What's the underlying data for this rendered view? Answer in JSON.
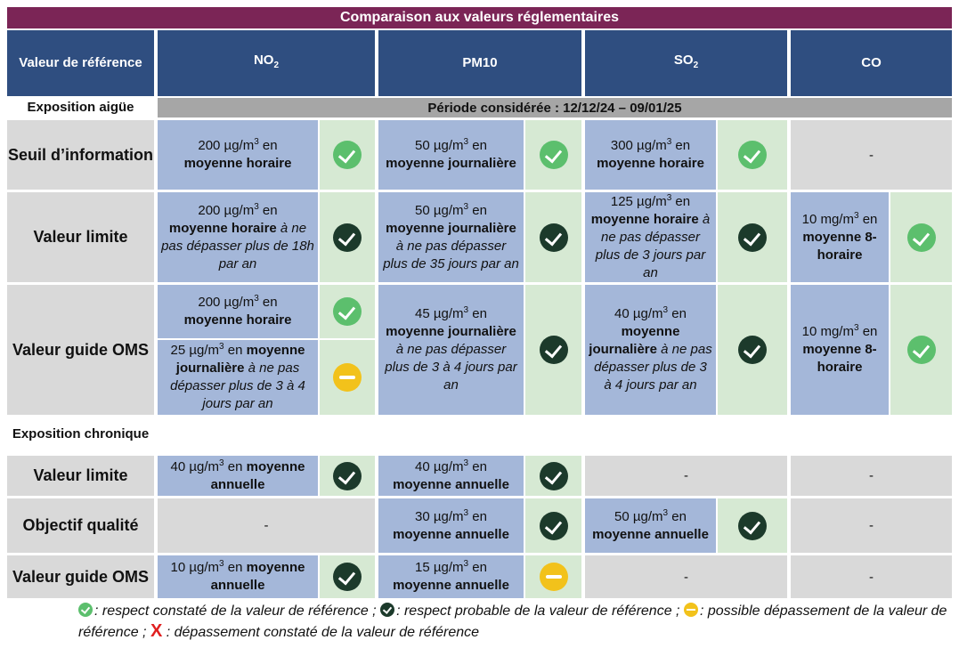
{
  "title": "Comparaison aux valeurs réglementaires",
  "headers": {
    "ref": "Valeur de référence",
    "no2": "NO",
    "no2_sub": "2",
    "pm10": "PM10",
    "so2": "SO",
    "so2_sub": "2",
    "co": "CO"
  },
  "sections": {
    "acute": "Exposition aigüe",
    "period": "Période considérée : 12/12/24 – 09/01/25",
    "chronic": "Exposition chronique"
  },
  "rows": {
    "seuil_info": "Seuil d’information",
    "valeur_limite": "Valeur limite",
    "valeur_guide_oms": "Valeur guide OMS",
    "chronic_valeur_limite": "Valeur limite",
    "objectif_qualite": "Objectif qualité",
    "chronic_valeur_guide_oms": "Valeur guide OMS"
  },
  "cells": {
    "ugm3": "200 µg/m",
    "exp3": "3",
    "en": " en ",
    "moyenne_horaire": "moyenne horaire",
    "no2_seuil_val": "200 µg/m",
    "pm10_seuil_val": "50 µg/m",
    "pm10_seuil_avg": "moyenne journalière",
    "so2_seuil_val": "300 µg/m",
    "so2_seuil_avg": "moyenne horaire",
    "dash": "-",
    "no2_limite_val": "200 µg/m",
    "no2_limite_avg": "moyenne horaire",
    "no2_limite_note": " à ne pas dépasser plus de 18h par an",
    "pm10_limite_val": "50 µg/m",
    "pm10_limite_avg": "moyenne journalière",
    "pm10_limite_note": " à ne pas dépasser plus de 35 jours par an",
    "so2_limite_val": "125 µg/m",
    "so2_limite_avg": "moyenne horaire",
    "so2_limite_note": " à ne pas dépasser plus de 3 jours par an",
    "co_limite_val": "10 mg/m",
    "co_limite_avg": "moyenne 8-horaire",
    "no2_oms1_val": "200 µg/m",
    "no2_oms1_avg": "moyenne horaire",
    "no2_oms2_val": "25 µg/m",
    "no2_oms2_avg": "moyenne journalière",
    "no2_oms2_note": " à ne pas dépasser plus de 3 à 4 jours par an",
    "pm10_oms_val": "45 µg/m",
    "pm10_oms_avg": "moyenne journalière",
    "pm10_oms_note": " à ne pas dépasser plus de 3 à 4 jours par an",
    "so2_oms_val": "40 µg/m",
    "so2_oms_avg": "moyenne journalière",
    "so2_oms_note": " à ne pas dépasser plus de 3 à 4 jours par an",
    "co_oms_val": "10 mg/m",
    "co_oms_avg": "moyenne 8-horaire",
    "no2_cl_val": "40 µg/m",
    "no2_cl_avg": "moyenne annuelle",
    "pm10_cl_val": "40 µg/m",
    "pm10_cl_avg": "moyenne annuelle",
    "pm10_oq_val": "30 µg/m",
    "pm10_oq_avg": "moyenne annuelle",
    "so2_oq_val": "50 µg/m",
    "so2_oq_avg": "moyenne annuelle",
    "no2_coms_val": "10 µg/m",
    "no2_coms_avg": "moyenne annuelle",
    "pm10_coms_val": "15 µg/m",
    "pm10_coms_avg": "moyenne annuelle"
  },
  "status_icons": {
    "light": "check-light-green-icon",
    "dark": "check-dark-green-icon",
    "yellow": "minus-yellow-icon"
  },
  "colors": {
    "title_bg": "#7b2556",
    "header_bg": "#2f4e80",
    "value_bg": "#a4b7d9",
    "status_bg": "#d6e9d3",
    "label_bg": "#d9d9d9",
    "check_light": "#5cbf6d",
    "check_dark": "#1c3a2b",
    "warn": "#f2c21b",
    "exceed": "#e02020"
  },
  "legend": {
    "light": ": respect constaté de la valeur de référence ; ",
    "dark": ": respect probable de la valeur de référence ; ",
    "yellow": ": possible dépassement de la valeur de référence ; ",
    "x_symbol": "X",
    "x": " : dépassement constaté de la valeur de référence"
  }
}
